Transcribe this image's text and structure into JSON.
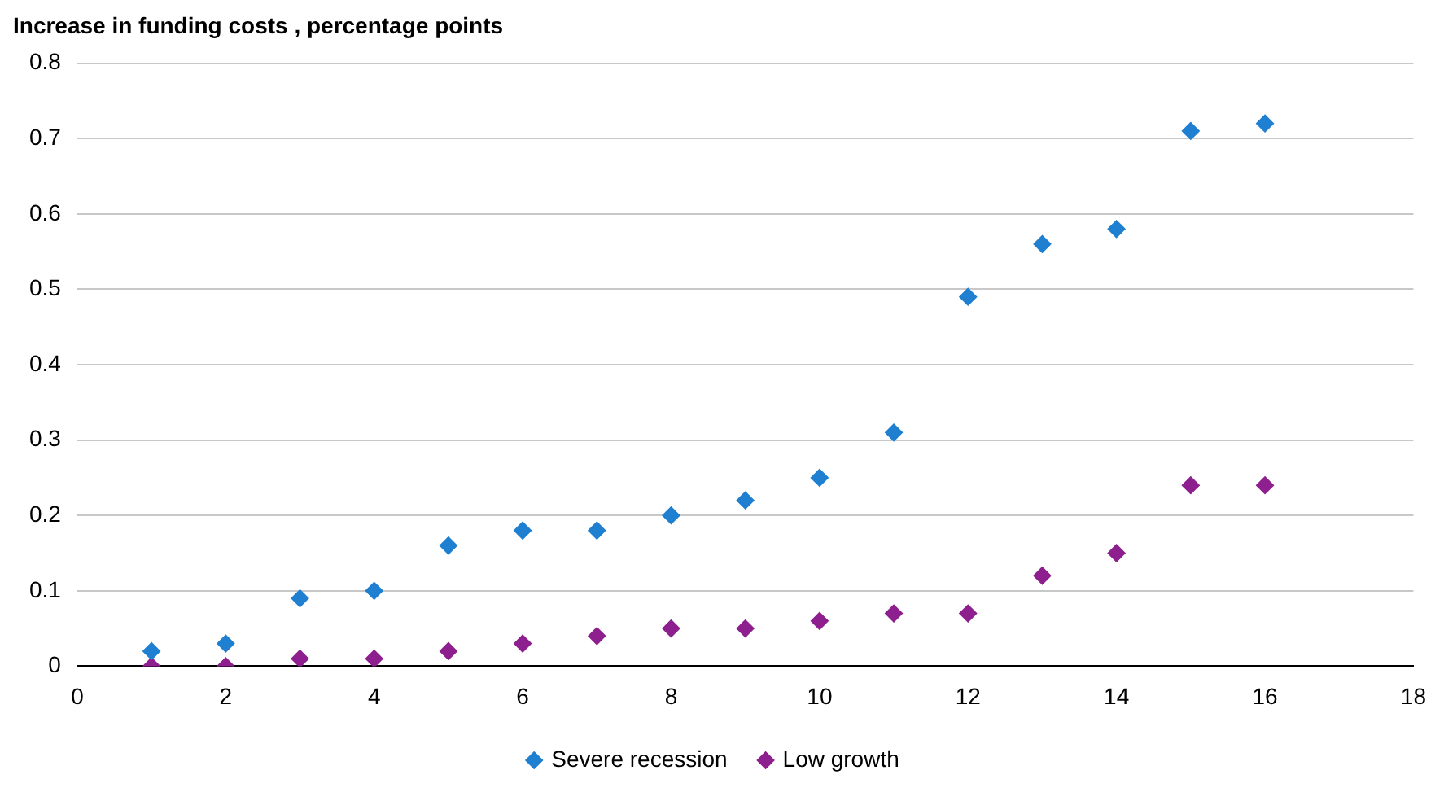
{
  "chart_data": {
    "type": "scatter",
    "ylabel": "Increase in funding costs , percentage points",
    "marker": "diamond",
    "grid": "y",
    "legend": "bottom",
    "xlim": [
      0,
      18
    ],
    "xticks": [
      0,
      2,
      4,
      6,
      8,
      10,
      12,
      14,
      16,
      18
    ],
    "ylim": [
      0,
      0.8
    ],
    "yticks": [
      0,
      0.1,
      0.2,
      0.3,
      0.4,
      0.5,
      0.6,
      0.7,
      0.8
    ],
    "x": [
      1,
      2,
      3,
      4,
      5,
      6,
      7,
      8,
      9,
      10,
      11,
      12,
      13,
      14,
      15,
      16
    ],
    "series": [
      {
        "name": "Severe recession",
        "color": "#1f7fd0",
        "values": [
          0.02,
          0.03,
          0.09,
          0.1,
          0.16,
          0.18,
          0.18,
          0.2,
          0.22,
          0.25,
          0.31,
          0.49,
          0.56,
          0.58,
          0.71,
          0.72
        ]
      },
      {
        "name": "Low growth",
        "color": "#8e1f8e",
        "values": [
          0,
          0,
          0.01,
          0.01,
          0.02,
          0.03,
          0.04,
          0.05,
          0.05,
          0.06,
          0.07,
          0.07,
          0.12,
          0.15,
          0.24,
          0.24
        ]
      }
    ]
  }
}
